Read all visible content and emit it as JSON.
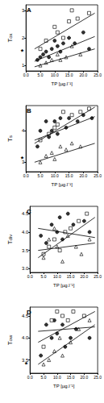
{
  "chart_data": [
    {
      "type": "scatter",
      "title": "A",
      "x_label": "TP [µg.l⁻¹]",
      "y_label": "T",
      "y_label_sub": "ox",
      "xlim": [
        0,
        25
      ],
      "xticks": [
        {
          "value": 0,
          "label": "0.0"
        },
        {
          "value": 5,
          "label": "5.0"
        },
        {
          "value": 10,
          "label": "10.0"
        },
        {
          "value": 15,
          "label": "15.0"
        },
        {
          "value": 20,
          "label": "20.0"
        },
        {
          "value": 25,
          "label": "25.0"
        }
      ],
      "ylim": [
        0.8,
        3.2
      ],
      "yticks": [
        1,
        2,
        3
      ],
      "annotations": [
        {
          "text": "*",
          "y": 1.5
        }
      ],
      "series": [
        {
          "color": "#000000",
          "marker": "circle",
          "x": [
            4,
            5,
            6,
            7,
            8,
            9,
            10,
            11,
            12,
            13,
            15,
            17,
            20,
            22
          ],
          "values": [
            1.2,
            1.3,
            1.4,
            1.5,
            1.3,
            1.6,
            1.9,
            1.7,
            1.5,
            1.8,
            2.0,
            1.8,
            2.2,
            1.6
          ],
          "fit": {
            "x": [
              3,
              24
            ],
            "y": [
              1.15,
              2.05
            ]
          }
        },
        {
          "color": "#000000",
          "marker": "open_square",
          "x": [
            5,
            7,
            10,
            11,
            13,
            15,
            16,
            18,
            22
          ],
          "values": [
            1.6,
            1.9,
            2.4,
            2.2,
            2.0,
            2.6,
            3.0,
            2.7,
            2.9
          ],
          "fit": {
            "x": [
              3,
              24
            ],
            "y": [
              1.6,
              2.9
            ]
          }
        },
        {
          "color": "#000000",
          "marker": "open_triangle",
          "x": [
            5,
            7,
            9,
            11,
            12,
            14,
            16,
            19
          ],
          "values": [
            1.0,
            1.1,
            1.2,
            1.4,
            1.2,
            1.3,
            1.7,
            1.4
          ],
          "fit": {
            "x": [
              3,
              24
            ],
            "y": [
              0.95,
              1.6
            ]
          }
        }
      ]
    },
    {
      "type": "scatter",
      "title": "B",
      "x_label": "TP [µg.l⁻¹]",
      "y_label": "T",
      "y_label_sub": "s",
      "xlim": [
        0,
        25
      ],
      "xticks": [
        {
          "value": 0,
          "label": "0.0"
        },
        {
          "value": 5,
          "label": "5.0"
        },
        {
          "value": 10,
          "label": "10.0"
        },
        {
          "value": 15,
          "label": "15.0"
        },
        {
          "value": 20,
          "label": "20.0"
        },
        {
          "value": 25,
          "label": "25.0"
        }
      ],
      "ylim": [
        2.7,
        4.8
      ],
      "yticks": [
        3,
        4
      ],
      "annotations": [
        {
          "text": "*",
          "y": 3.1
        }
      ],
      "series": [
        {
          "color": "#000000",
          "marker": "circle",
          "x": [
            4,
            5,
            7,
            8,
            9,
            10,
            11,
            12,
            14,
            15,
            18,
            20,
            23
          ],
          "values": [
            3.5,
            4.0,
            4.3,
            3.8,
            4.0,
            4.3,
            3.9,
            4.4,
            4.1,
            4.4,
            4.3,
            4.5,
            4.4
          ],
          "fit": {
            "x": [
              3,
              24
            ],
            "y": [
              3.7,
              4.45
            ]
          }
        },
        {
          "color": "#000000",
          "marker": "open_square",
          "x": [
            5,
            8,
            10,
            11,
            13,
            16,
            19,
            22
          ],
          "values": [
            3.7,
            3.9,
            4.1,
            4.2,
            4.6,
            4.5,
            4.6,
            4.7
          ],
          "fit": {
            "x": [
              3,
              24
            ],
            "y": [
              3.6,
              4.75
            ]
          }
        },
        {
          "color": "#000000",
          "marker": "open_triangle",
          "x": [
            5,
            7,
            9,
            10,
            12,
            14,
            16,
            19
          ],
          "values": [
            3.0,
            3.2,
            3.3,
            3.1,
            3.5,
            3.4,
            3.6,
            3.5
          ],
          "fit": {
            "x": [
              3,
              24
            ],
            "y": [
              3.0,
              3.6
            ]
          }
        }
      ]
    },
    {
      "type": "scatter",
      "title": "C",
      "x_label": "TP [µg.l⁻¹]",
      "y_label": "T",
      "y_label_sub": "div",
      "xlim": [
        0,
        25
      ],
      "xticks": [
        {
          "value": 0,
          "label": "0.0"
        },
        {
          "value": 5,
          "label": "5.0"
        },
        {
          "value": 10,
          "label": "10.0"
        },
        {
          "value": 15,
          "label": "15.0"
        },
        {
          "value": 20,
          "label": "20.0"
        },
        {
          "value": 25,
          "label": "25.0"
        }
      ],
      "ylim": [
        2.9,
        4.7
      ],
      "yticks": [
        {
          "value": 3,
          "label": "3.0"
        },
        3.5,
        {
          "value": 4,
          "label": "4.0"
        },
        4.5
      ],
      "series": [
        {
          "color": "#000000",
          "marker": "circle",
          "x": [
            4,
            6,
            8,
            10,
            11,
            12,
            14,
            16,
            20,
            22
          ],
          "values": [
            3.9,
            3.7,
            4.2,
            4.0,
            4.4,
            3.8,
            4.5,
            4.2,
            4.3,
            4.0
          ],
          "fit": {
            "x": [
              3,
              24
            ],
            "y": [
              4.1,
              3.85
            ]
          }
        },
        {
          "color": "#000000",
          "marker": "open_square",
          "x": [
            5,
            7,
            9,
            11,
            13,
            15,
            18,
            21
          ],
          "values": [
            3.4,
            3.6,
            3.8,
            3.5,
            4.0,
            4.1,
            4.3,
            4.5
          ],
          "fit": {
            "x": [
              3,
              24
            ],
            "y": [
              3.3,
              4.4
            ]
          }
        },
        {
          "color": "#000000",
          "marker": "open_triangle",
          "x": [
            5,
            7,
            9,
            10,
            12,
            14,
            17,
            19,
            22
          ],
          "values": [
            3.3,
            3.8,
            4.1,
            3.6,
            3.2,
            3.9,
            3.6,
            3.4,
            3.8
          ],
          "fit": {
            "x": [
              3,
              24
            ],
            "y": [
              3.5,
              3.7
            ]
          }
        }
      ]
    },
    {
      "type": "scatter",
      "title": "D",
      "x_label": "TP [µg.l⁻¹]",
      "y_label": "T",
      "y_label_sub": "ow",
      "xlim": [
        0,
        25
      ],
      "xticks": [
        {
          "value": 0,
          "label": "0.0"
        },
        {
          "value": 5,
          "label": "5.0"
        },
        {
          "value": 10,
          "label": "10.0"
        },
        {
          "value": 15,
          "label": "15.0"
        },
        {
          "value": 20,
          "label": "20.0"
        },
        {
          "value": 25,
          "label": "25.0"
        }
      ],
      "ylim": [
        3.2,
        4.7
      ],
      "yticks": [
        3.5,
        {
          "value": 4,
          "label": "4.0"
        },
        4.5
      ],
      "annotations": [
        {
          "text": "*",
          "y": 3.4
        }
      ],
      "series": [
        {
          "color": "#000000",
          "marker": "circle",
          "x": [
            4,
            6,
            8,
            9,
            10,
            12,
            13,
            15,
            17,
            22
          ],
          "values": [
            3.6,
            4.3,
            4.0,
            4.4,
            4.1,
            4.3,
            3.8,
            4.0,
            4.2,
            4.0
          ],
          "fit": {
            "x": [
              3,
              24
            ],
            "y": [
              4.15,
              4.25
            ]
          }
        },
        {
          "color": "#000000",
          "marker": "open_square",
          "x": [
            5,
            8,
            10,
            12,
            14,
            16,
            20
          ],
          "values": [
            3.8,
            4.4,
            4.6,
            4.5,
            4.4,
            4.6,
            4.5
          ],
          "fit": {
            "x": [
              3,
              24
            ],
            "y": [
              3.9,
              4.6
            ]
          }
        },
        {
          "color": "#000000",
          "marker": "open_triangle",
          "x": [
            5,
            7,
            9,
            11,
            12,
            15,
            18,
            22
          ],
          "values": [
            3.4,
            3.5,
            3.7,
            4.0,
            3.6,
            3.9,
            4.2,
            4.4
          ],
          "fit": {
            "x": [
              3,
              24
            ],
            "y": [
              3.4,
              4.3
            ]
          }
        }
      ]
    }
  ]
}
